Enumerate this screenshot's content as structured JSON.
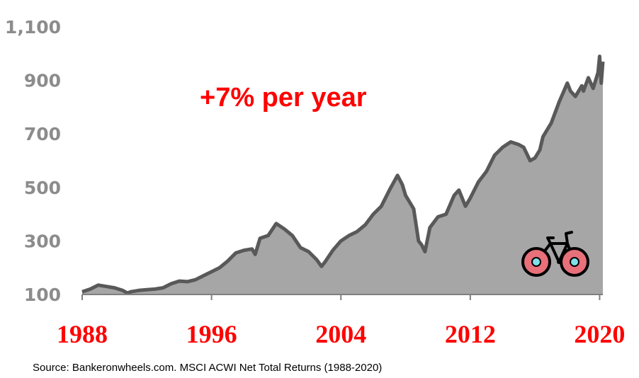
{
  "chart_data": {
    "type": "area",
    "title": "",
    "xlabel": "",
    "ylabel": "",
    "annotation": "+7% per year",
    "source": "Source: Bankeronwheels.com. MSCI ACWI Net Total Returns (1988-2020)",
    "x_ticks": [
      "1988",
      "1996",
      "2004",
      "2012",
      "2020"
    ],
    "y_ticks": [
      "100",
      "300",
      "500",
      "700",
      "900",
      "1,100"
    ],
    "xlim": [
      1988,
      2020.2
    ],
    "ylim": [
      100,
      1100
    ],
    "grid": false,
    "colors": {
      "area_fill": "#a6a6a6",
      "line": "#595959",
      "x_tick_text": "#ff0000",
      "y_tick_text": "#8c8c8c",
      "annotation_text": "#ff0000",
      "axis": "#7f7f7f",
      "bike_wheel": "#e8707a",
      "bike_hub": "#7fe0e8"
    },
    "icon": "bicycle-icon",
    "series": [
      {
        "x": [
          1988.0,
          1988.5,
          1989.0,
          1989.5,
          1990.0,
          1990.5,
          1990.8,
          1991.0,
          1991.5,
          1992.0,
          1992.5,
          1993.0,
          1993.5,
          1994.0,
          1994.5,
          1995.0,
          1995.5,
          1996.0,
          1996.5,
          1997.0,
          1997.5,
          1998.0,
          1998.5,
          1998.7,
          1999.0,
          1999.5,
          2000.0,
          2000.5,
          2001.0,
          2001.5,
          2002.0,
          2002.5,
          2002.8,
          2003.0,
          2003.5,
          2004.0,
          2004.5,
          2005.0,
          2005.5,
          2006.0,
          2006.5,
          2007.0,
          2007.5,
          2007.8,
          2008.0,
          2008.5,
          2008.8,
          2009.0,
          2009.2,
          2009.5,
          2010.0,
          2010.5,
          2011.0,
          2011.3,
          2011.7,
          2012.0,
          2012.5,
          2013.0,
          2013.5,
          2014.0,
          2014.5,
          2015.0,
          2015.3,
          2015.7,
          2016.0,
          2016.3,
          2016.5,
          2017.0,
          2017.5,
          2018.0,
          2018.2,
          2018.5,
          2018.9,
          2019.0,
          2019.3,
          2019.6,
          2019.9,
          2020.0,
          2020.1,
          2020.2
        ],
        "y": [
          110,
          120,
          135,
          130,
          125,
          115,
          105,
          110,
          115,
          118,
          120,
          125,
          140,
          150,
          148,
          155,
          170,
          185,
          200,
          225,
          255,
          265,
          270,
          250,
          310,
          320,
          365,
          345,
          320,
          275,
          260,
          230,
          205,
          220,
          265,
          300,
          320,
          335,
          360,
          400,
          430,
          490,
          545,
          510,
          470,
          420,
          300,
          285,
          260,
          350,
          390,
          400,
          470,
          490,
          430,
          460,
          520,
          560,
          620,
          650,
          670,
          660,
          650,
          600,
          610,
          640,
          690,
          740,
          820,
          890,
          860,
          840,
          880,
          860,
          910,
          870,
          930,
          990,
          890,
          970
        ]
      }
    ]
  }
}
